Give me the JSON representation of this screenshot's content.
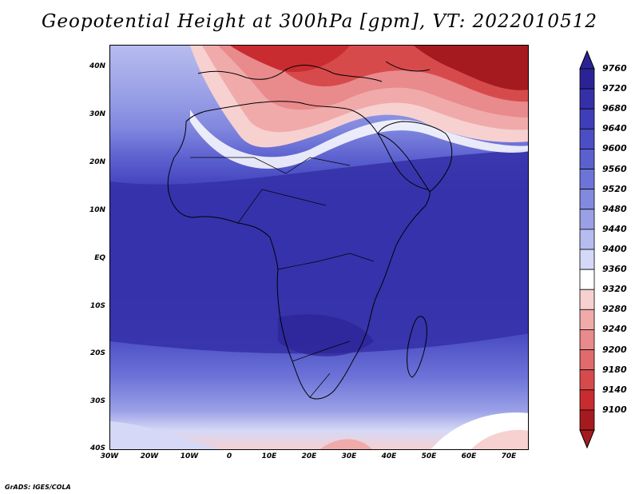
{
  "title": "Geopotential Height at 300hPa [gpm], VT: 2022010512",
  "credit": "GrADS: IGES/COLA",
  "map": {
    "field": "geopotential height 300hPa",
    "units": "gpm",
    "lon_range": [
      -30,
      75
    ],
    "lat_range": [
      -40,
      45
    ],
    "lat_ticks": [
      "40N",
      "30N",
      "20N",
      "10N",
      "EQ",
      "10S",
      "20S",
      "30S",
      "40S"
    ],
    "lon_ticks": [
      "30W",
      "20W",
      "10W",
      "0",
      "10E",
      "20E",
      "30E",
      "40E",
      "50E",
      "60E",
      "70E"
    ],
    "colorbar_levels": [
      "9760",
      "9720",
      "9680",
      "9640",
      "9600",
      "9560",
      "9520",
      "9480",
      "9440",
      "9400",
      "9360",
      "9320",
      "9280",
      "9240",
      "9200",
      "9180",
      "9140",
      "9100"
    ],
    "colorbar_colors": [
      "#2b2395",
      "#3530a8",
      "#3f3eb8",
      "#4b4ec4",
      "#5b60cf",
      "#6d74d8",
      "#8289df",
      "#9aa0e6",
      "#b7bcef",
      "#d5d8f6",
      "#ffffff",
      "#f7d0d0",
      "#f0aaaa",
      "#e98a8c",
      "#e06a6c",
      "#d74a4c",
      "#c82c30",
      "#a51a1f"
    ],
    "colorbar_arrows": [
      "top",
      "bottom"
    ]
  }
}
